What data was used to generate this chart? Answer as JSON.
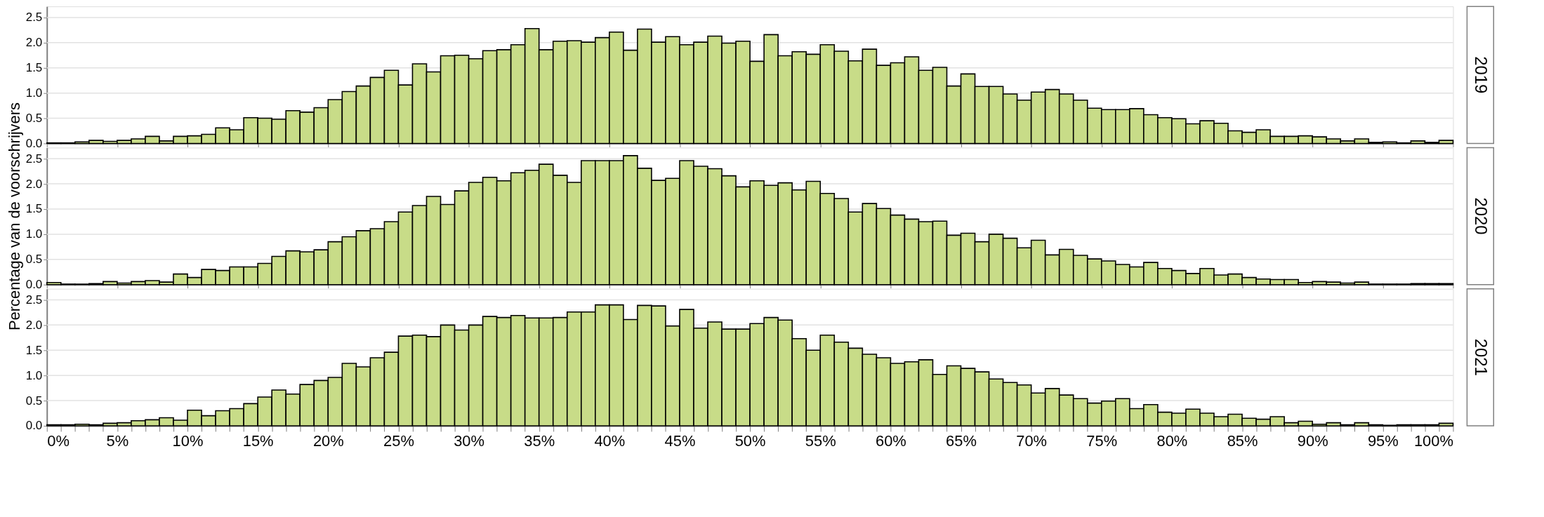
{
  "chart_data": [
    {
      "type": "histogram",
      "annotations": [
        "2019"
      ],
      "color": "#c8dc88",
      "tick_labels": "y",
      "grid": "y",
      "bins": [
        0,
        1,
        2,
        3,
        4,
        5,
        6,
        7,
        8,
        9,
        10,
        11,
        12,
        13,
        14,
        15,
        16,
        17,
        18,
        19,
        20,
        21,
        22,
        23,
        24,
        25,
        26,
        27,
        28,
        29,
        30,
        31,
        32,
        33,
        34,
        35,
        36,
        37,
        38,
        39,
        40,
        41,
        42,
        43,
        44,
        45,
        46,
        47,
        48,
        49,
        50,
        51,
        52,
        53,
        54,
        55,
        56,
        57,
        58,
        59,
        60,
        61,
        62,
        63,
        64,
        65,
        66,
        67,
        68,
        69,
        70,
        71,
        72,
        73,
        74,
        75,
        76,
        77,
        78,
        79,
        80,
        81,
        82,
        83,
        84,
        85,
        86,
        87,
        88,
        89,
        90,
        91,
        92,
        93,
        94,
        95,
        96,
        97,
        98,
        99,
        100
      ],
      "values": [
        0.01,
        0.01,
        0.03,
        0.06,
        0.04,
        0.06,
        0.09,
        0.14,
        0.05,
        0.14,
        0.15,
        0.18,
        0.31,
        0.27,
        0.51,
        0.5,
        0.48,
        0.65,
        0.62,
        0.71,
        0.87,
        1.03,
        1.14,
        1.31,
        1.45,
        1.16,
        1.58,
        1.42,
        1.74,
        1.75,
        1.68,
        1.84,
        1.86,
        1.96,
        2.28,
        1.86,
        2.03,
        2.04,
        2.01,
        2.1,
        2.21,
        1.85,
        2.27,
        2.01,
        2.12,
        1.96,
        2.01,
        2.13,
        1.99,
        2.03,
        1.63,
        2.16,
        1.74,
        1.82,
        1.77,
        1.96,
        1.83,
        1.64,
        1.87,
        1.55,
        1.6,
        1.72,
        1.45,
        1.51,
        1.14,
        1.38,
        1.13,
        1.13,
        0.98,
        0.86,
        1.02,
        1.07,
        0.98,
        0.86,
        0.7,
        0.67,
        0.67,
        0.69,
        0.57,
        0.51,
        0.49,
        0.39,
        0.45,
        0.4,
        0.25,
        0.22,
        0.27,
        0.14,
        0.14,
        0.15,
        0.13,
        0.09,
        0.05,
        0.09,
        0.02,
        0.03,
        0.01,
        0.05,
        0.02,
        0.06
      ],
      "xlim": [
        0,
        100
      ],
      "ylim": [
        0,
        2.72
      ],
      "xticks": [
        {
          "value": 0,
          "label": null
        },
        {
          "value": 5,
          "label": null
        },
        {
          "value": 10,
          "label": null
        },
        {
          "value": 15,
          "label": null
        },
        {
          "value": 20,
          "label": null
        },
        {
          "value": 25,
          "label": null
        },
        {
          "value": 30,
          "label": null
        },
        {
          "value": 35,
          "label": null
        },
        {
          "value": 40,
          "label": null
        },
        {
          "value": 45,
          "label": null
        },
        {
          "value": 50,
          "label": null
        },
        {
          "value": 55,
          "label": null
        },
        {
          "value": 60,
          "label": null
        },
        {
          "value": 65,
          "label": null
        },
        {
          "value": 70,
          "label": null
        },
        {
          "value": 75,
          "label": null
        },
        {
          "value": 80,
          "label": null
        },
        {
          "value": 85,
          "label": null
        },
        {
          "value": 90,
          "label": null
        },
        {
          "value": 95,
          "label": null
        },
        {
          "value": 100,
          "label": null
        }
      ],
      "yticks": [
        {
          "value": 0,
          "label": "0.0"
        },
        {
          "value": 0.5,
          "label": "0.5"
        },
        {
          "value": 1,
          "label": "1.0"
        },
        {
          "value": 1.5,
          "label": "1.5"
        },
        {
          "value": 2,
          "label": "2.0"
        },
        {
          "value": 2.5,
          "label": "2.5"
        }
      ]
    },
    {
      "type": "histogram",
      "annotations": [
        "2020"
      ],
      "ylabel": "Percentage van de voorschrijvers",
      "color": "#c8dc88",
      "tick_labels": "y",
      "grid": "y",
      "bins": [
        0,
        1,
        2,
        3,
        4,
        5,
        6,
        7,
        8,
        9,
        10,
        11,
        12,
        13,
        14,
        15,
        16,
        17,
        18,
        19,
        20,
        21,
        22,
        23,
        24,
        25,
        26,
        27,
        28,
        29,
        30,
        31,
        32,
        33,
        34,
        35,
        36,
        37,
        38,
        39,
        40,
        41,
        42,
        43,
        44,
        45,
        46,
        47,
        48,
        49,
        50,
        51,
        52,
        53,
        54,
        55,
        56,
        57,
        58,
        59,
        60,
        61,
        62,
        63,
        64,
        65,
        66,
        67,
        68,
        69,
        70,
        71,
        72,
        73,
        74,
        75,
        76,
        77,
        78,
        79,
        80,
        81,
        82,
        83,
        84,
        85,
        86,
        87,
        88,
        89,
        90,
        91,
        92,
        93,
        94,
        95,
        96,
        97,
        98,
        99,
        100
      ],
      "values": [
        0.04,
        0.01,
        0.01,
        0.02,
        0.06,
        0.03,
        0.06,
        0.08,
        0.05,
        0.21,
        0.14,
        0.3,
        0.28,
        0.35,
        0.35,
        0.42,
        0.56,
        0.67,
        0.65,
        0.69,
        0.85,
        0.95,
        1.07,
        1.11,
        1.25,
        1.44,
        1.57,
        1.75,
        1.59,
        1.86,
        2.03,
        2.13,
        2.06,
        2.22,
        2.27,
        2.39,
        2.17,
        2.03,
        2.46,
        2.46,
        2.46,
        2.56,
        2.31,
        2.07,
        2.11,
        2.46,
        2.35,
        2.3,
        2.16,
        1.94,
        2.06,
        1.97,
        2.02,
        1.88,
        2.05,
        1.81,
        1.71,
        1.44,
        1.61,
        1.51,
        1.38,
        1.3,
        1.25,
        1.26,
        0.98,
        1.02,
        0.85,
        1.0,
        0.92,
        0.73,
        0.88,
        0.59,
        0.7,
        0.58,
        0.51,
        0.47,
        0.4,
        0.35,
        0.44,
        0.32,
        0.28,
        0.22,
        0.32,
        0.19,
        0.21,
        0.14,
        0.11,
        0.1,
        0.1,
        0.04,
        0.06,
        0.05,
        0.03,
        0.05,
        0.01,
        0.01,
        0.01,
        0.02,
        0.02,
        0.02
      ],
      "xlim": [
        0,
        100
      ],
      "ylim": [
        0,
        2.72
      ],
      "xticks": [
        {
          "value": 0,
          "label": null
        },
        {
          "value": 5,
          "label": null
        },
        {
          "value": 10,
          "label": null
        },
        {
          "value": 15,
          "label": null
        },
        {
          "value": 20,
          "label": null
        },
        {
          "value": 25,
          "label": null
        },
        {
          "value": 30,
          "label": null
        },
        {
          "value": 35,
          "label": null
        },
        {
          "value": 40,
          "label": null
        },
        {
          "value": 45,
          "label": null
        },
        {
          "value": 50,
          "label": null
        },
        {
          "value": 55,
          "label": null
        },
        {
          "value": 60,
          "label": null
        },
        {
          "value": 65,
          "label": null
        },
        {
          "value": 70,
          "label": null
        },
        {
          "value": 75,
          "label": null
        },
        {
          "value": 80,
          "label": null
        },
        {
          "value": 85,
          "label": null
        },
        {
          "value": 90,
          "label": null
        },
        {
          "value": 95,
          "label": null
        },
        {
          "value": 100,
          "label": null
        }
      ],
      "yticks": [
        {
          "value": 0,
          "label": "0.0"
        },
        {
          "value": 0.5,
          "label": "0.5"
        },
        {
          "value": 1,
          "label": "1.0"
        },
        {
          "value": 1.5,
          "label": "1.5"
        },
        {
          "value": 2,
          "label": "2.0"
        },
        {
          "value": 2.5,
          "label": "2.5"
        }
      ]
    },
    {
      "type": "histogram",
      "annotations": [
        "2021"
      ],
      "color": "#c8dc88",
      "grid": "y",
      "bins": [
        0,
        1,
        2,
        3,
        4,
        5,
        6,
        7,
        8,
        9,
        10,
        11,
        12,
        13,
        14,
        15,
        16,
        17,
        18,
        19,
        20,
        21,
        22,
        23,
        24,
        25,
        26,
        27,
        28,
        29,
        30,
        31,
        32,
        33,
        34,
        35,
        36,
        37,
        38,
        39,
        40,
        41,
        42,
        43,
        44,
        45,
        46,
        47,
        48,
        49,
        50,
        51,
        52,
        53,
        54,
        55,
        56,
        57,
        58,
        59,
        60,
        61,
        62,
        63,
        64,
        65,
        66,
        67,
        68,
        69,
        70,
        71,
        72,
        73,
        74,
        75,
        76,
        77,
        78,
        79,
        80,
        81,
        82,
        83,
        84,
        85,
        86,
        87,
        88,
        89,
        90,
        91,
        92,
        93,
        94,
        95,
        96,
        97,
        98,
        99,
        100
      ],
      "values": [
        0.02,
        0.02,
        0.03,
        0.02,
        0.05,
        0.06,
        0.1,
        0.12,
        0.16,
        0.11,
        0.31,
        0.2,
        0.3,
        0.34,
        0.44,
        0.57,
        0.71,
        0.63,
        0.82,
        0.9,
        0.96,
        1.24,
        1.17,
        1.35,
        1.46,
        1.78,
        1.8,
        1.77,
        2.0,
        1.9,
        2.0,
        2.17,
        2.15,
        2.19,
        2.14,
        2.14,
        2.15,
        2.26,
        2.26,
        2.4,
        2.4,
        2.11,
        2.39,
        2.38,
        1.98,
        2.31,
        1.94,
        2.06,
        1.92,
        1.92,
        2.03,
        2.15,
        2.1,
        1.73,
        1.5,
        1.8,
        1.66,
        1.54,
        1.42,
        1.35,
        1.24,
        1.27,
        1.31,
        1.02,
        1.19,
        1.14,
        1.07,
        0.93,
        0.86,
        0.81,
        0.65,
        0.74,
        0.61,
        0.54,
        0.45,
        0.49,
        0.54,
        0.34,
        0.42,
        0.27,
        0.25,
        0.33,
        0.25,
        0.18,
        0.23,
        0.15,
        0.13,
        0.18,
        0.06,
        0.09,
        0.03,
        0.06,
        0.02,
        0.06,
        0.02,
        0.01,
        0.02,
        0.02,
        0.02,
        0.05
      ],
      "xlim": [
        0,
        100
      ],
      "ylim": [
        0,
        2.72
      ],
      "xticks": [
        {
          "value": 0,
          "label": "0%"
        },
        {
          "value": 1,
          "label": null
        },
        {
          "value": 2,
          "label": null
        },
        {
          "value": 3,
          "label": null
        },
        {
          "value": 4,
          "label": null
        },
        {
          "value": 5,
          "label": "5%"
        },
        {
          "value": 6,
          "label": null
        },
        {
          "value": 7,
          "label": null
        },
        {
          "value": 8,
          "label": null
        },
        {
          "value": 9,
          "label": null
        },
        {
          "value": 10,
          "label": "10%"
        },
        {
          "value": 11,
          "label": null
        },
        {
          "value": 12,
          "label": null
        },
        {
          "value": 13,
          "label": null
        },
        {
          "value": 14,
          "label": null
        },
        {
          "value": 15,
          "label": "15%"
        },
        {
          "value": 16,
          "label": null
        },
        {
          "value": 17,
          "label": null
        },
        {
          "value": 18,
          "label": null
        },
        {
          "value": 19,
          "label": null
        },
        {
          "value": 20,
          "label": "20%"
        },
        {
          "value": 21,
          "label": null
        },
        {
          "value": 22,
          "label": null
        },
        {
          "value": 23,
          "label": null
        },
        {
          "value": 24,
          "label": null
        },
        {
          "value": 25,
          "label": "25%"
        },
        {
          "value": 26,
          "label": null
        },
        {
          "value": 27,
          "label": null
        },
        {
          "value": 28,
          "label": null
        },
        {
          "value": 29,
          "label": null
        },
        {
          "value": 30,
          "label": "30%"
        },
        {
          "value": 31,
          "label": null
        },
        {
          "value": 32,
          "label": null
        },
        {
          "value": 33,
          "label": null
        },
        {
          "value": 34,
          "label": null
        },
        {
          "value": 35,
          "label": "35%"
        },
        {
          "value": 36,
          "label": null
        },
        {
          "value": 37,
          "label": null
        },
        {
          "value": 38,
          "label": null
        },
        {
          "value": 39,
          "label": null
        },
        {
          "value": 40,
          "label": "40%"
        },
        {
          "value": 41,
          "label": null
        },
        {
          "value": 42,
          "label": null
        },
        {
          "value": 43,
          "label": null
        },
        {
          "value": 44,
          "label": null
        },
        {
          "value": 45,
          "label": "45%"
        },
        {
          "value": 46,
          "label": null
        },
        {
          "value": 47,
          "label": null
        },
        {
          "value": 48,
          "label": null
        },
        {
          "value": 49,
          "label": null
        },
        {
          "value": 50,
          "label": "50%"
        },
        {
          "value": 51,
          "label": null
        },
        {
          "value": 52,
          "label": null
        },
        {
          "value": 53,
          "label": null
        },
        {
          "value": 54,
          "label": null
        },
        {
          "value": 55,
          "label": "55%"
        },
        {
          "value": 56,
          "label": null
        },
        {
          "value": 57,
          "label": null
        },
        {
          "value": 58,
          "label": null
        },
        {
          "value": 59,
          "label": null
        },
        {
          "value": 60,
          "label": "60%"
        },
        {
          "value": 61,
          "label": null
        },
        {
          "value": 62,
          "label": null
        },
        {
          "value": 63,
          "label": null
        },
        {
          "value": 64,
          "label": null
        },
        {
          "value": 65,
          "label": "65%"
        },
        {
          "value": 66,
          "label": null
        },
        {
          "value": 67,
          "label": null
        },
        {
          "value": 68,
          "label": null
        },
        {
          "value": 69,
          "label": null
        },
        {
          "value": 70,
          "label": "70%"
        },
        {
          "value": 71,
          "label": null
        },
        {
          "value": 72,
          "label": null
        },
        {
          "value": 73,
          "label": null
        },
        {
          "value": 74,
          "label": null
        },
        {
          "value": 75,
          "label": "75%"
        },
        {
          "value": 76,
          "label": null
        },
        {
          "value": 77,
          "label": null
        },
        {
          "value": 78,
          "label": null
        },
        {
          "value": 79,
          "label": null
        },
        {
          "value": 80,
          "label": "80%"
        },
        {
          "value": 81,
          "label": null
        },
        {
          "value": 82,
          "label": null
        },
        {
          "value": 83,
          "label": null
        },
        {
          "value": 84,
          "label": null
        },
        {
          "value": 85,
          "label": "85%"
        },
        {
          "value": 86,
          "label": null
        },
        {
          "value": 87,
          "label": null
        },
        {
          "value": 88,
          "label": null
        },
        {
          "value": 89,
          "label": null
        },
        {
          "value": 90,
          "label": "90%"
        },
        {
          "value": 91,
          "label": null
        },
        {
          "value": 92,
          "label": null
        },
        {
          "value": 93,
          "label": null
        },
        {
          "value": 94,
          "label": null
        },
        {
          "value": 95,
          "label": "95%"
        },
        {
          "value": 96,
          "label": null
        },
        {
          "value": 97,
          "label": null
        },
        {
          "value": 98,
          "label": null
        },
        {
          "value": 99,
          "label": null
        },
        {
          "value": 100,
          "label": "100%"
        }
      ],
      "yticks": [
        {
          "value": 0,
          "label": "0.0"
        },
        {
          "value": 0.5,
          "label": "0.5"
        },
        {
          "value": 1,
          "label": "1.0"
        },
        {
          "value": 1.5,
          "label": "1.5"
        },
        {
          "value": 2,
          "label": "2.0"
        },
        {
          "value": 2.5,
          "label": "2.5"
        }
      ]
    }
  ]
}
